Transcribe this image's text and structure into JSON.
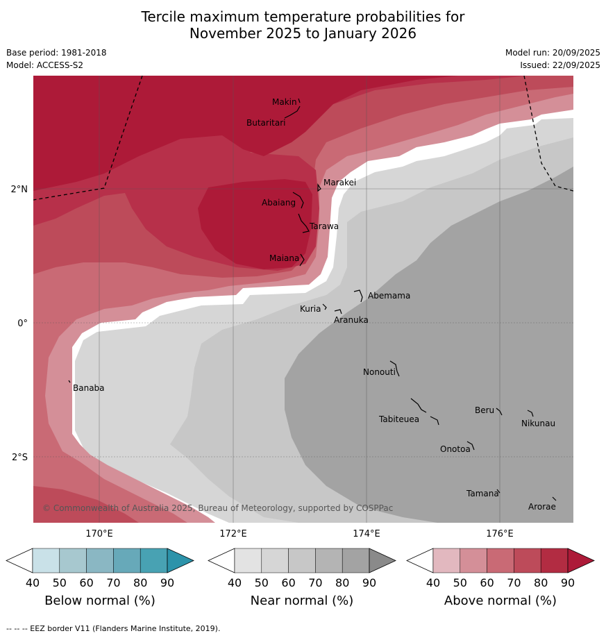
{
  "title": {
    "line1": "Tercile maximum temperature probabilities for",
    "line2": "November 2025 to January 2026"
  },
  "meta": {
    "base_period": "Base period: 1981-2018",
    "model": "Model: ACCESS-S2",
    "model_run": "Model run: 20/09/2025",
    "issued": "Issued: 22/09/2025"
  },
  "map": {
    "lat_labels": [
      "2°N",
      "0°",
      "2°S"
    ],
    "lon_labels": [
      "170°E",
      "172°E",
      "174°E",
      "176°E"
    ],
    "copyright": "© Commonwealth of Australia 2025, Bureau of Meteorology, supported by COSPPac",
    "islands": [
      "Makin",
      "Butaritari",
      "Marakei",
      "Abaiang",
      "Tarawa",
      "Maiana",
      "Abemama",
      "Kuria",
      "Aranuka",
      "Banaba",
      "Nonouti",
      "Beru",
      "Nikunau",
      "Tabiteuea",
      "Onotoa",
      "Tamana",
      "Arorae"
    ]
  },
  "colors": {
    "above": [
      "#e2b8bf",
      "#d48f98",
      "#c96a75",
      "#bd4b5a",
      "#b22c42",
      "#ad1a38"
    ],
    "near": [
      "#e3e3e3",
      "#d6d6d6",
      "#c7c7c7",
      "#b4b4b4",
      "#a3a3a3",
      "#8a8a8a"
    ],
    "below": [
      "#c9e1e8",
      "#a7c8cf",
      "#8ab7c3",
      "#67a9b9",
      "#48a2b3",
      "#2c93aa"
    ]
  },
  "legends": [
    {
      "label": "Below normal (%)",
      "ticks": [
        "40",
        "50",
        "60",
        "70",
        "80",
        "90"
      ]
    },
    {
      "label": "Near normal (%)",
      "ticks": [
        "40",
        "50",
        "60",
        "70",
        "80",
        "90"
      ]
    },
    {
      "label": "Above normal (%)",
      "ticks": [
        "40",
        "50",
        "60",
        "70",
        "80",
        "90"
      ]
    }
  ],
  "footer": "--  --  -- EEZ border V11 (Flanders Marine Institute, 2019)."
}
